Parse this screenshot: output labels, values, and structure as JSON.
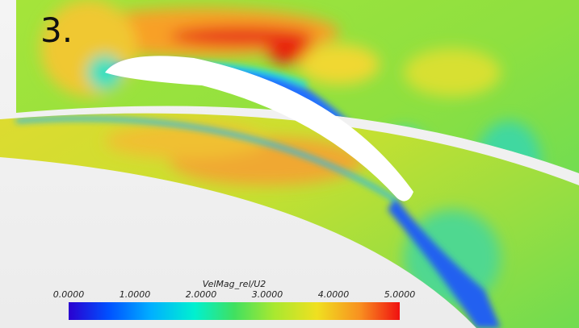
{
  "label": "3.",
  "colorbar": {
    "title": "VelMag_rel/U2",
    "ticks": [
      "0.0000",
      "1.0000",
      "2.0000",
      "3.0000",
      "4.0000",
      "5.0000"
    ]
  }
}
